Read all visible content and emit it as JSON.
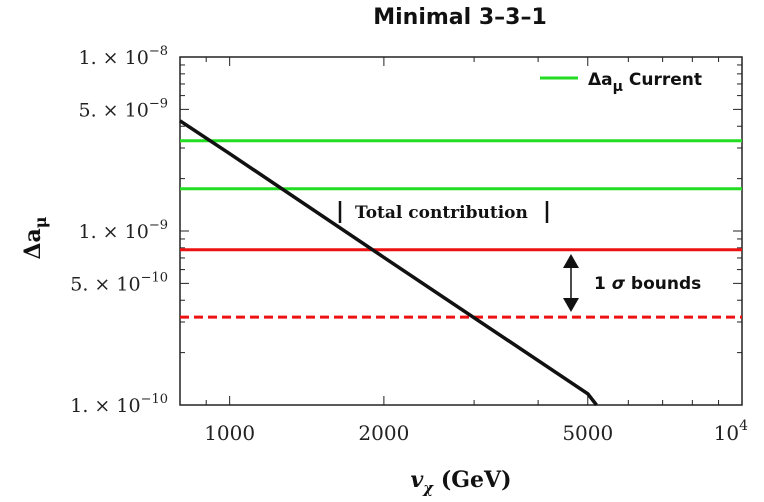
{
  "chart_data": {
    "type": "line",
    "title": "Minimal 3–3–1",
    "xlabel": "vχ (GeV)",
    "ylabel": "Δaμ",
    "x_scale": "log",
    "y_scale": "log",
    "xlim": [
      800,
      10000
    ],
    "ylim": [
      1e-10,
      1e-08
    ],
    "x_ticks": [
      {
        "value": 1000,
        "label": "1000"
      },
      {
        "value": 2000,
        "label": "2000"
      },
      {
        "value": 5000,
        "label": "5000"
      },
      {
        "value": 10000,
        "label": "10",
        "exp": "4"
      }
    ],
    "y_ticks": [
      {
        "value": 1e-08,
        "mantissa": "1.",
        "exp": "−8"
      },
      {
        "value": 5e-09,
        "mantissa": "5.",
        "exp": "−9"
      },
      {
        "value": 1e-09,
        "mantissa": "1.",
        "exp": "−9"
      },
      {
        "value": 5e-10,
        "mantissa": "5.",
        "exp": "−10"
      },
      {
        "value": 1e-10,
        "mantissa": "1.",
        "exp": "−10"
      }
    ],
    "hlines": [
      {
        "y": 3.3e-09,
        "color": "#22dd22",
        "style": "solid"
      },
      {
        "y": 1.75e-09,
        "color": "#22dd22",
        "style": "solid"
      },
      {
        "y": 7.8e-10,
        "color": "#ee1111",
        "style": "solid"
      },
      {
        "y": 3.2e-10,
        "color": "#ee1111",
        "style": "dashed"
      }
    ],
    "series": [
      {
        "color": "#111111",
        "x": [
          800,
          1000,
          2000,
          5000,
          5200
        ],
        "y": [
          4.3e-09,
          2.78e-09,
          7.05e-10,
          1.16e-10,
          1e-10
        ]
      }
    ],
    "legend": {
      "position": "top-right",
      "text": "Δa",
      "subscript": "μ",
      "suffix": " Current",
      "color": "#22dd22"
    },
    "annotations": {
      "total_contribution": "Total contribution",
      "sigma_bounds_prefix": "1 ",
      "sigma_symbol": "σ",
      "sigma_bounds_suffix": " bounds"
    }
  }
}
